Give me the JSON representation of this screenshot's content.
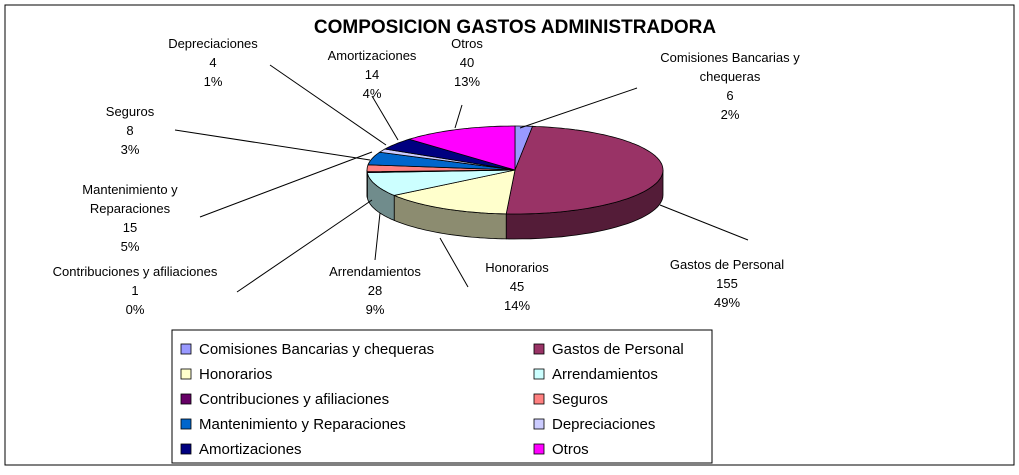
{
  "chart_data": {
    "type": "pie3d",
    "title": "COMPOSICION GASTOS ADMINISTRADORA",
    "categories": [
      "Comisiones Bancarias y chequeras",
      "Gastos de Personal",
      "Honorarios",
      "Arrendamientos",
      "Contribuciones y afiliaciones",
      "Seguros",
      "Mantenimiento y Reparaciones",
      "Depreciaciones",
      "Amortizaciones",
      "Otros"
    ],
    "values": [
      6,
      155,
      45,
      28,
      1,
      8,
      15,
      4,
      14,
      40
    ],
    "percent_labels": [
      "2%",
      "49%",
      "14%",
      "9%",
      "0%",
      "3%",
      "5%",
      "1%",
      "4%",
      "13%"
    ],
    "colors": [
      "#9999ff",
      "#993366",
      "#ffffcc",
      "#ccffff",
      "#660066",
      "#ff8080",
      "#0066cc",
      "#ccccff",
      "#000080",
      "#ff00ff"
    ],
    "legend": "bottom"
  }
}
